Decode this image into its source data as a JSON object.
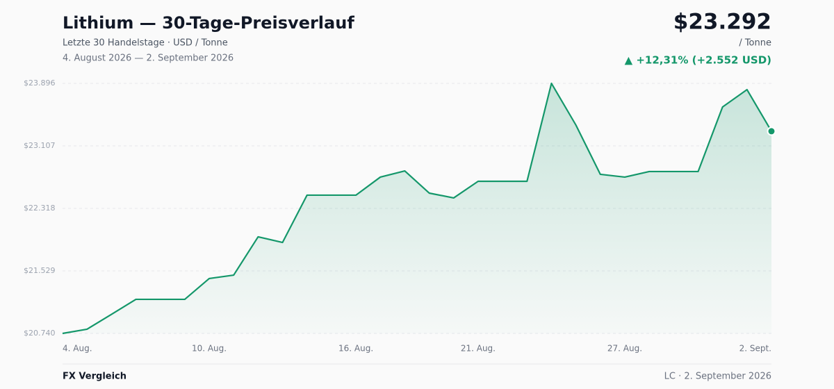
{
  "header": {
    "title": "Lithium — 30-Tage-Preisverlauf",
    "subtitle": "Letzte 30 Handelstage · USD / Tonne",
    "date_range": "4. August 2026 — 2. September 2026",
    "price": "$23.292",
    "unit": "/ Tonne",
    "change": "▲ +12,31% (+2.552 USD)"
  },
  "chart_data": {
    "type": "line",
    "color": "#14976a",
    "categories": [
      "4. Aug.",
      null,
      null,
      null,
      null,
      null,
      "10. Aug.",
      null,
      null,
      null,
      null,
      null,
      "16. Aug.",
      null,
      null,
      null,
      null,
      "21. Aug.",
      null,
      null,
      null,
      null,
      null,
      "27. Aug.",
      null,
      null,
      null,
      null,
      null,
      "2. Sept."
    ],
    "values": [
      20740,
      20793,
      20981,
      21170,
      21170,
      21170,
      21433,
      21476,
      21959,
      21888,
      22485,
      22485,
      22485,
      22713,
      22791,
      22511,
      22450,
      22660,
      22660,
      22660,
      23896,
      23370,
      22748,
      22713,
      22783,
      22783,
      22783,
      23598,
      23817,
      23292
    ],
    "ylim": [
      20740,
      23896
    ],
    "yticks": [
      {
        "value": 20740,
        "label": "$20.740"
      },
      {
        "value": 21529,
        "label": "$21.529"
      },
      {
        "value": 22318,
        "label": "$22.318"
      },
      {
        "value": 23107,
        "label": "$23.107"
      },
      {
        "value": 23896,
        "label": "$23.896"
      }
    ],
    "grid": true
  },
  "footer": {
    "left": "FX Vergleich",
    "right": "LC · 2. September 2026"
  }
}
